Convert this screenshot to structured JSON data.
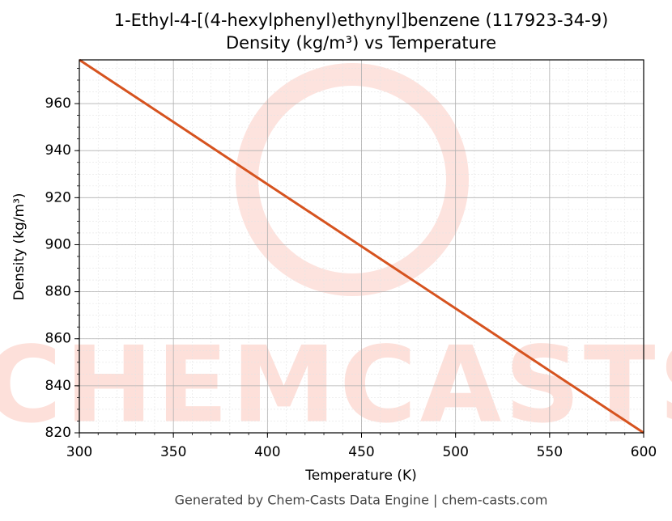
{
  "chart_data": {
    "type": "line",
    "title": "1-Ethyl-4-[(4-hexylphenyl)ethynyl]benzene (117923-34-9)",
    "subtitle": "Density (kg/m³) vs Temperature",
    "x_label": "Temperature (K)",
    "y_label": "Density (kg/m³)",
    "footer": "Generated by Chem-Casts Data Engine | chem-casts.com",
    "watermark": "CHEMCASTS",
    "x": [
      300,
      350,
      400,
      450,
      500,
      550,
      600
    ],
    "series": [
      {
        "name": "Density",
        "color": "#d6531f",
        "values": [
          978.6,
          952.2,
          925.7,
          899.3,
          872.9,
          846.4,
          820.0
        ]
      }
    ],
    "xlim": [
      300,
      600
    ],
    "xticks": [
      300,
      350,
      400,
      450,
      500,
      550,
      600
    ],
    "ylim": [
      820,
      978.6
    ],
    "yticks": [
      820,
      840,
      860,
      880,
      900,
      920,
      940,
      960
    ],
    "grid": true
  }
}
